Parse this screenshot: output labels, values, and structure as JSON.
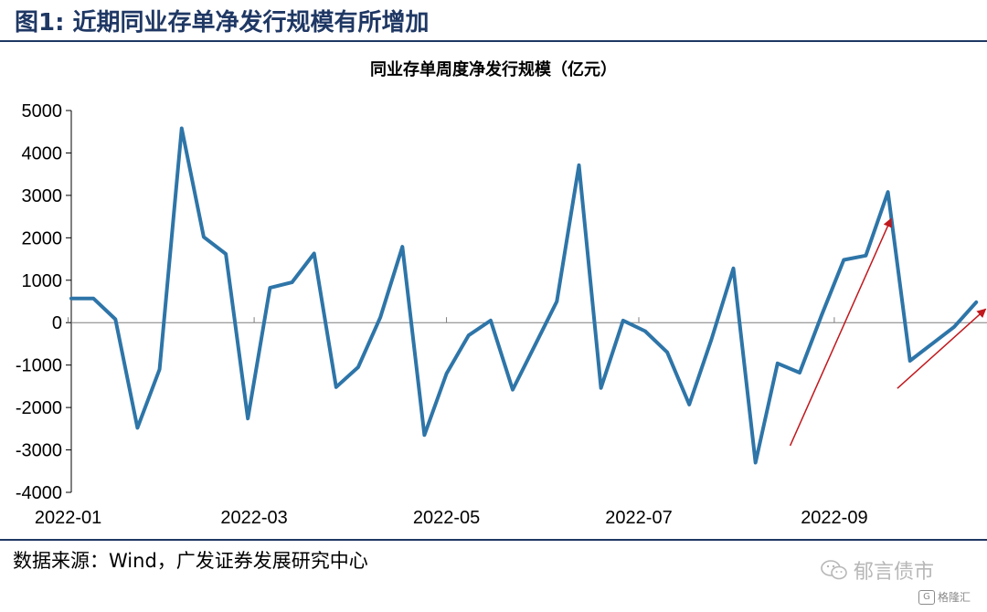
{
  "figure": {
    "title": "图1:  近期同业存单净发行规模有所增加"
  },
  "source_note": "数据来源：Wind，广发证券发展研究中心",
  "watermark": {
    "text": "郁言债市",
    "icon": "wechat-icon"
  },
  "badge": {
    "text": "格隆汇",
    "icon": "g-icon"
  },
  "colors": {
    "line": "#2e75a8",
    "arrow": "#c0181d",
    "header": "#1f3864"
  },
  "chart_data": {
    "type": "line",
    "title": "同业存单周度净发行规模（亿元）",
    "xlabel": "",
    "ylabel": "",
    "ylim": [
      -4000,
      5000
    ],
    "yticks": [
      -4000,
      -3000,
      -2000,
      -1000,
      0,
      1000,
      2000,
      3000,
      4000,
      5000
    ],
    "xticks": [
      "2022-01",
      "2022-03",
      "2022-05",
      "2022-07",
      "2022-09"
    ],
    "grid": false,
    "x": [
      "2022-01-02",
      "2022-01-09",
      "2022-01-16",
      "2022-01-23",
      "2022-01-30",
      "2022-02-06",
      "2022-02-13",
      "2022-02-20",
      "2022-02-27",
      "2022-03-06",
      "2022-03-13",
      "2022-03-20",
      "2022-03-27",
      "2022-04-03",
      "2022-04-10",
      "2022-04-17",
      "2022-04-24",
      "2022-05-01",
      "2022-05-08",
      "2022-05-15",
      "2022-05-22",
      "2022-05-29",
      "2022-06-05",
      "2022-06-12",
      "2022-06-19",
      "2022-06-26",
      "2022-07-03",
      "2022-07-10",
      "2022-07-17",
      "2022-07-24",
      "2022-07-31",
      "2022-08-07",
      "2022-08-14",
      "2022-08-21",
      "2022-08-28",
      "2022-09-04",
      "2022-09-11",
      "2022-09-18",
      "2022-09-25",
      "2022-10-02",
      "2022-10-09",
      "2022-10-16"
    ],
    "series": [
      {
        "values": [
          570,
          570,
          80,
          -2480,
          -1100,
          4580,
          2020,
          1620,
          -2260,
          820,
          950,
          1630,
          -1520,
          -1050,
          120,
          1790,
          -2650,
          -1200,
          -300,
          50,
          -1580,
          -540,
          500,
          3710,
          -1540,
          50,
          -200,
          -700,
          -1930,
          -400,
          1280,
          -3300,
          -960,
          -1180,
          180,
          1480,
          1580,
          3080,
          -900,
          -500,
          -100,
          480
        ]
      }
    ],
    "annotations": [
      {
        "type": "arrow",
        "from": [
          "2022-08-18",
          -2900
        ],
        "to": [
          "2022-09-19",
          2450
        ]
      },
      {
        "type": "arrow",
        "from": [
          "2022-09-21",
          -1550
        ],
        "to": [
          "2022-10-19",
          320
        ]
      }
    ]
  }
}
